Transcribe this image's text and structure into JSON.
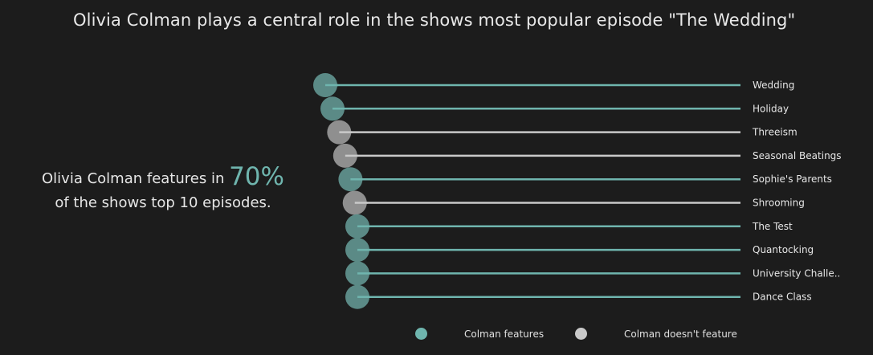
{
  "title": "Olivia Colman plays a central role in the shows most popular episode \"The Wedding\"",
  "callout": {
    "prefix": "Olivia Colman features in ",
    "value": "70%",
    "suffix": "of the shows top 10 episodes."
  },
  "colors": {
    "features": "#6fb5ae",
    "not_features": "#c9c9c9",
    "dot_features": "#5b8a86",
    "dot_not_features": "#8f8f8f"
  },
  "legend": [
    {
      "label": "Colman features",
      "key": "features"
    },
    {
      "label": "Colman doesn't feature",
      "key": "not_features"
    }
  ],
  "chart_data": {
    "type": "lollipop",
    "categories": [
      "Wedding",
      "Holiday",
      "Threeism",
      "Seasonal Beatings",
      "Sophie's Parents",
      "Shrooming",
      "The Test",
      "Quantocking",
      "University Challe..",
      "Dance Class"
    ],
    "colman_features": [
      true,
      true,
      false,
      false,
      true,
      false,
      true,
      true,
      true,
      true
    ],
    "rank": [
      1,
      2,
      3,
      4,
      5,
      6,
      7,
      8,
      9,
      10
    ],
    "legend_position": "bottom",
    "grid": false
  }
}
